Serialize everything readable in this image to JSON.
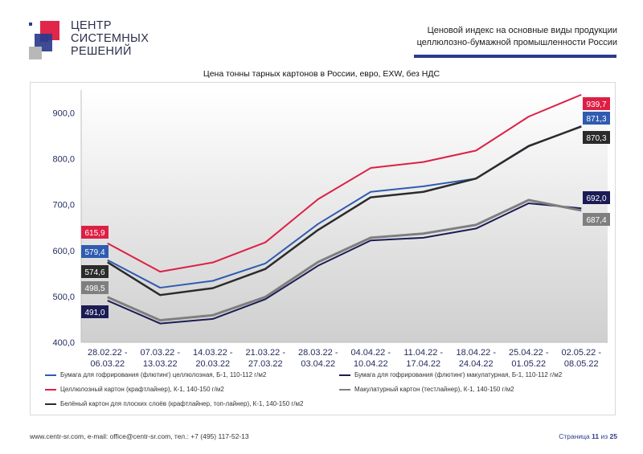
{
  "logo": {
    "text": "ЦЕНТР\nСИСТЕМНЫХ\nРЕШЕНИЙ",
    "colors": {
      "red": "#e0264a",
      "blue": "#2d3b8c",
      "gray": "#b8b8b8",
      "purple": "#7a2a6a"
    }
  },
  "header": {
    "title": "Ценовой индекс на основные виды продукции целлюлозно-бумажной промышленности России",
    "rule_color": "#2d3b8c"
  },
  "chart_data": {
    "type": "line",
    "title": "Цена тонны тарных картонов в России, евро, EXW, без НДС",
    "categories": [
      "28.02.22 - 06.03.22",
      "07.03.22 - 13.03.22",
      "14.03.22 - 20.03.22",
      "21.03.22 - 27.03.22",
      "28.03.22 - 03.04.22",
      "04.04.22 - 10.04.22",
      "11.04.22 - 17.04.22",
      "18.04.22 - 24.04.22",
      "25.04.22 - 01.05.22",
      "02.05.22 - 08.05.22"
    ],
    "yticks": [
      "400,0",
      "500,0",
      "600,0",
      "700,0",
      "800,0",
      "900,0"
    ],
    "ylim": [
      400,
      950
    ],
    "grid": false,
    "legend_position": "bottom",
    "series": [
      {
        "name": "Бумага для гофрирования (флютинг) целлюлозная, Б-1, 110-112 г/м2",
        "color": "#2f5cb0",
        "values": [
          579.4,
          519,
          534,
          572,
          658,
          728,
          740,
          757,
          827,
          871.3
        ],
        "first_label": "579,4",
        "last_label": "871,3"
      },
      {
        "name": "Бумага для гофрирования (флютинг) макулатурная, Б-1, 110-112 г/м2",
        "color": "#1b1c55",
        "values": [
          491.0,
          441,
          451,
          494,
          567,
          622,
          628,
          648,
          703,
          692.0
        ],
        "first_label": "491,0",
        "last_label": "692,0"
      },
      {
        "name": "Целлюлозный картон (крафтлайнер), К-1, 140-150 г/м2",
        "color": "#dd1f44",
        "values": [
          615.9,
          554,
          574,
          618,
          712,
          780,
          793,
          818,
          892,
          939.7
        ],
        "first_label": "615,9",
        "last_label": "939,7"
      },
      {
        "name": "Макулатурный картон (тестлайнер), К-1, 140-150 г/м2",
        "color": "#7f7f7f",
        "values": [
          498.5,
          448,
          459,
          499,
          575,
          628,
          637,
          656,
          710,
          687.4
        ],
        "first_label": "498,5",
        "last_label": "687,4"
      },
      {
        "name": "Белёный картон для плоских слоёв (крафтлайнер, топ-лайнер), К-1, 140-150 г/м2",
        "color": "#2b2b2b",
        "values": [
          574.6,
          503,
          518,
          560,
          645,
          716,
          728,
          757,
          828,
          870.3
        ],
        "first_label": "574,6",
        "last_label": "870,3"
      }
    ]
  },
  "footer": {
    "contacts": "www.centr-sr.com, e-mail: office@centr-sr.com, тел.: +7 (495) 117-52-13",
    "page_prefix": "Страница",
    "page_current": "11",
    "page_sep": "из",
    "page_total": "25"
  }
}
